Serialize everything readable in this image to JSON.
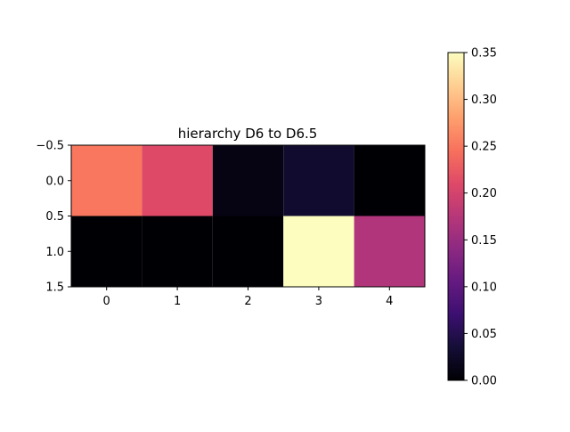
{
  "chart_data": {
    "type": "heatmap",
    "title": "hierarchy D6 to D6.5",
    "xlabel": "",
    "ylabel": "",
    "x_ticks": [
      "0",
      "1",
      "2",
      "3",
      "4"
    ],
    "y_ticks": [
      "−0.5",
      "0.0",
      "0.5",
      "1.0",
      "1.5"
    ],
    "y_tick_values": [
      -0.5,
      0.0,
      0.5,
      1.0,
      1.5
    ],
    "xlim": [
      -0.5,
      4.5
    ],
    "ylim": [
      1.5,
      -0.5
    ],
    "values": [
      [
        0.25,
        0.21,
        0.01,
        0.03,
        0.0
      ],
      [
        0.0,
        0.0,
        0.0,
        0.35,
        0.17
      ]
    ],
    "colormap": "magma",
    "colorbar": {
      "min": 0.0,
      "max": 0.35,
      "ticks": [
        0.0,
        0.05,
        0.1,
        0.15,
        0.2,
        0.25,
        0.3,
        0.35
      ],
      "tick_labels": [
        "0.00",
        "0.05",
        "0.10",
        "0.15",
        "0.20",
        "0.25",
        "0.30",
        "0.35"
      ]
    },
    "grid": false
  }
}
